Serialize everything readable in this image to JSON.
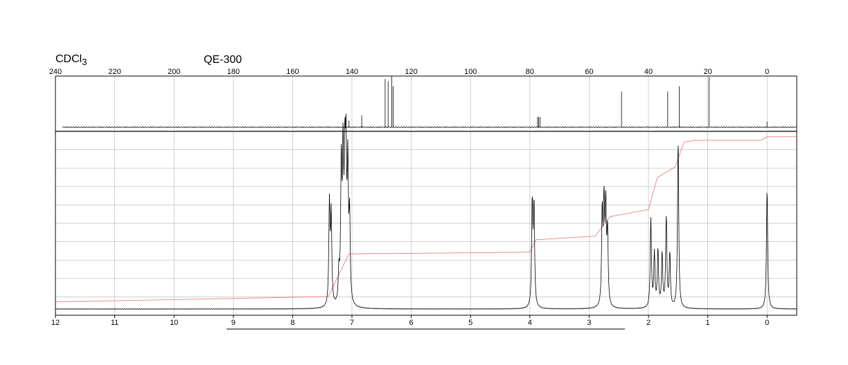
{
  "header": {
    "solvent_prefix": "CDCl",
    "solvent_subscript": "3",
    "instrument": "QE-300"
  },
  "chart_data": [
    {
      "type": "line",
      "panel": "13C",
      "xlim": [
        240,
        -10
      ],
      "x_ticks": [
        240,
        220,
        200,
        180,
        160,
        140,
        120,
        100,
        80,
        60,
        40,
        20,
        0
      ],
      "grid": "vertical",
      "series": [
        {
          "peaks": [
            {
              "x": 141.0,
              "h": 0.13
            },
            {
              "x": 136.7,
              "h": 0.23
            },
            {
              "x": 128.8,
              "h": 0.94
            },
            {
              "x": 127.8,
              "h": 0.9
            },
            {
              "x": 126.6,
              "h": 1.0
            },
            {
              "x": 126.1,
              "h": 0.8
            },
            {
              "x": 77.4,
              "h": 0.2
            },
            {
              "x": 77.0,
              "h": 0.2
            },
            {
              "x": 76.6,
              "h": 0.2
            },
            {
              "x": 49.1,
              "h": 0.7
            },
            {
              "x": 33.5,
              "h": 0.7
            },
            {
              "x": 29.6,
              "h": 0.8
            },
            {
              "x": 19.6,
              "h": 0.98
            },
            {
              "x": 0.0,
              "h": 0.11
            }
          ]
        }
      ]
    },
    {
      "type": "line",
      "panel": "1H",
      "xlim": [
        12,
        -0.5
      ],
      "ylim": [
        0,
        1
      ],
      "x_ticks": [
        12,
        11,
        10,
        9,
        8,
        7,
        6,
        5,
        4,
        3,
        2,
        1,
        0
      ],
      "grid": "both",
      "series": [
        {
          "peaks": [
            {
              "x": 7.38,
              "h": 0.57
            },
            {
              "x": 7.35,
              "h": 0.5
            },
            {
              "x": 7.22,
              "h": 0.17
            },
            {
              "x": 7.18,
              "h": 0.76
            },
            {
              "x": 7.15,
              "h": 0.8
            },
            {
              "x": 7.12,
              "h": 0.7
            },
            {
              "x": 7.1,
              "h": 0.74
            },
            {
              "x": 7.07,
              "h": 0.72
            },
            {
              "x": 7.04,
              "h": 0.46
            },
            {
              "x": 3.96,
              "h": 0.58
            },
            {
              "x": 3.93,
              "h": 0.56
            },
            {
              "x": 2.78,
              "h": 0.52
            },
            {
              "x": 2.75,
              "h": 0.55
            },
            {
              "x": 2.72,
              "h": 0.53
            },
            {
              "x": 2.69,
              "h": 0.4
            },
            {
              "x": 1.96,
              "h": 0.5
            },
            {
              "x": 1.9,
              "h": 0.3
            },
            {
              "x": 1.84,
              "h": 0.32
            },
            {
              "x": 1.77,
              "h": 0.3
            },
            {
              "x": 1.7,
              "h": 0.51
            },
            {
              "x": 1.64,
              "h": 0.3
            },
            {
              "x": 1.5,
              "h": 0.95
            },
            {
              "x": 0.0,
              "h": 0.68
            }
          ],
          "integral": {
            "x": [
              12,
              7.4,
              7.05,
              4.0,
              3.9,
              2.9,
              2.65,
              2.0,
              1.85,
              1.55,
              1.4,
              1.2,
              0.1,
              0.0,
              -0.5
            ],
            "y": [
              0.04,
              0.07,
              0.31,
              0.32,
              0.39,
              0.41,
              0.52,
              0.56,
              0.74,
              0.8,
              0.94,
              0.95,
              0.95,
              0.97,
              0.97
            ]
          }
        }
      ]
    }
  ]
}
